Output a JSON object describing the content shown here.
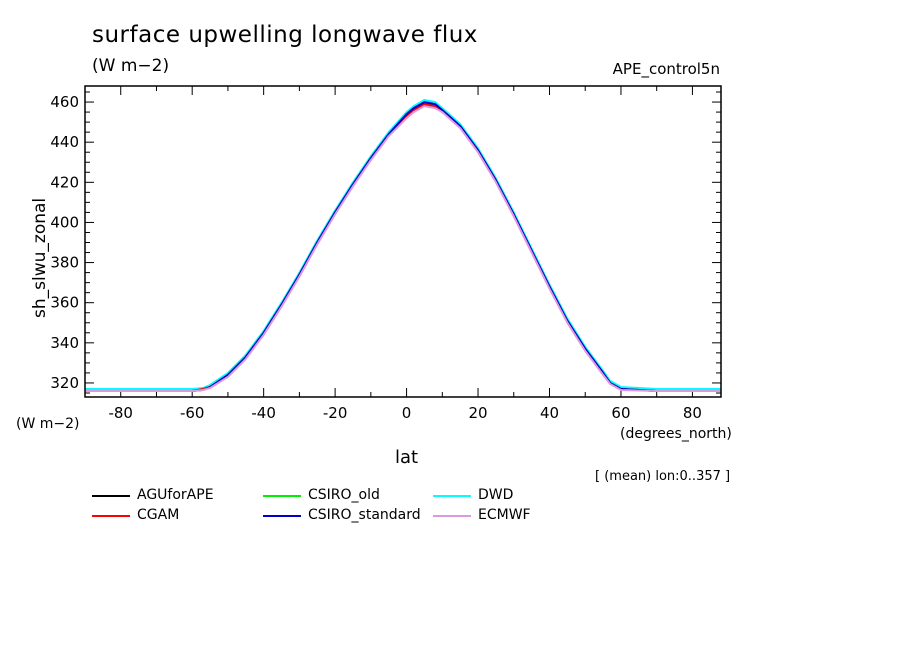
{
  "header": {
    "title": "surface upwelling longwave flux",
    "units": "(W m−2)",
    "run_name": "APE_control5n"
  },
  "axes": {
    "ylabel": "sh_slwu_zonal",
    "yunits": "(W m−2)",
    "xlabel": "lat",
    "xunits": "(degrees_north)"
  },
  "annotation": "[ (mean) lon:0..357 ]",
  "legend": [
    {
      "name": "AGUforAPE",
      "color": "#000000"
    },
    {
      "name": "CSIRO_old",
      "color": "#00ee00"
    },
    {
      "name": "DWD",
      "color": "#00ffff"
    },
    {
      "name": "CGAM",
      "color": "#ff0000"
    },
    {
      "name": "CSIRO_standard",
      "color": "#0000cc"
    },
    {
      "name": "ECMWF",
      "color": "#dd99dd"
    }
  ],
  "chart_data": {
    "type": "line",
    "xlabel": "lat",
    "ylabel": "sh_slwu_zonal",
    "xlim": [
      -90,
      88
    ],
    "ylim": [
      313,
      468
    ],
    "xticks": [
      -80,
      -60,
      -40,
      -20,
      0,
      20,
      40,
      60,
      80
    ],
    "yticks": [
      320,
      340,
      360,
      380,
      400,
      420,
      440,
      460
    ],
    "xtick_labels": [
      "-80",
      "-60",
      "-40",
      "-20",
      "0",
      "20",
      "40",
      "60",
      "80"
    ],
    "ytick_labels": [
      "320",
      "340",
      "360",
      "380",
      "400",
      "420",
      "440",
      "460"
    ],
    "x": [
      -90,
      -80,
      -70,
      -60,
      -57,
      -55,
      -50,
      -45,
      -40,
      -35,
      -30,
      -25,
      -20,
      -15,
      -10,
      -5,
      0,
      2,
      5,
      8,
      10,
      15,
      20,
      25,
      30,
      35,
      40,
      45,
      50,
      55,
      57,
      60,
      70,
      80,
      88
    ],
    "series": [
      {
        "name": "AGUforAPE",
        "color": "#000000",
        "y": [
          316,
          316,
          316,
          316,
          317,
          318,
          324,
          333,
          345,
          359,
          374,
          390,
          405,
          419,
          432,
          444,
          453,
          456,
          459,
          458,
          456,
          448,
          436,
          421,
          404,
          386,
          368,
          351,
          337,
          325,
          320,
          317,
          316,
          316,
          316
        ]
      },
      {
        "name": "CSIRO_old",
        "color": "#00ee00",
        "y": [
          316,
          316,
          316,
          316,
          317,
          318,
          324,
          333,
          345,
          359,
          374,
          390,
          405,
          419,
          432,
          444,
          453,
          456,
          459,
          458,
          456,
          448,
          436,
          421,
          404,
          386,
          368,
          351,
          337,
          325,
          320,
          317,
          316,
          316,
          316
        ]
      },
      {
        "name": "DWD",
        "color": "#00ffff",
        "y": [
          317,
          317,
          317,
          317,
          317.5,
          319,
          325,
          334,
          346,
          360,
          375,
          391,
          406,
          420,
          433,
          445,
          455,
          458,
          461,
          460,
          457,
          449,
          437,
          422,
          405,
          387,
          369,
          352,
          338,
          326,
          321,
          318,
          317,
          317,
          317
        ]
      },
      {
        "name": "CGAM",
        "color": "#ff0000",
        "y": [
          316,
          316,
          316,
          316,
          317,
          318,
          324,
          333,
          345,
          359,
          374,
          390,
          405,
          419,
          432,
          444,
          453,
          456,
          459,
          458,
          456,
          448,
          436,
          421,
          404,
          386,
          368,
          351,
          337,
          325,
          320,
          317,
          316,
          316,
          316
        ]
      },
      {
        "name": "CSIRO_standard",
        "color": "#0000cc",
        "y": [
          316,
          316,
          316,
          316,
          316.5,
          318,
          324,
          333,
          345,
          359,
          374,
          390,
          405,
          419,
          432,
          444,
          454,
          457,
          460,
          459,
          456,
          448,
          436,
          421,
          404,
          386,
          368,
          351,
          337,
          325,
          320,
          317,
          316,
          316,
          316
        ]
      },
      {
        "name": "ECMWF",
        "color": "#dd99dd",
        "y": [
          316,
          316,
          316,
          316,
          316.5,
          317.5,
          323,
          332,
          344,
          358,
          373,
          389,
          404,
          418,
          431,
          443,
          452,
          455,
          458,
          457,
          455,
          447,
          435,
          420,
          403,
          385,
          367,
          350,
          336,
          324,
          319.5,
          316.5,
          316,
          316,
          316
        ]
      }
    ]
  }
}
